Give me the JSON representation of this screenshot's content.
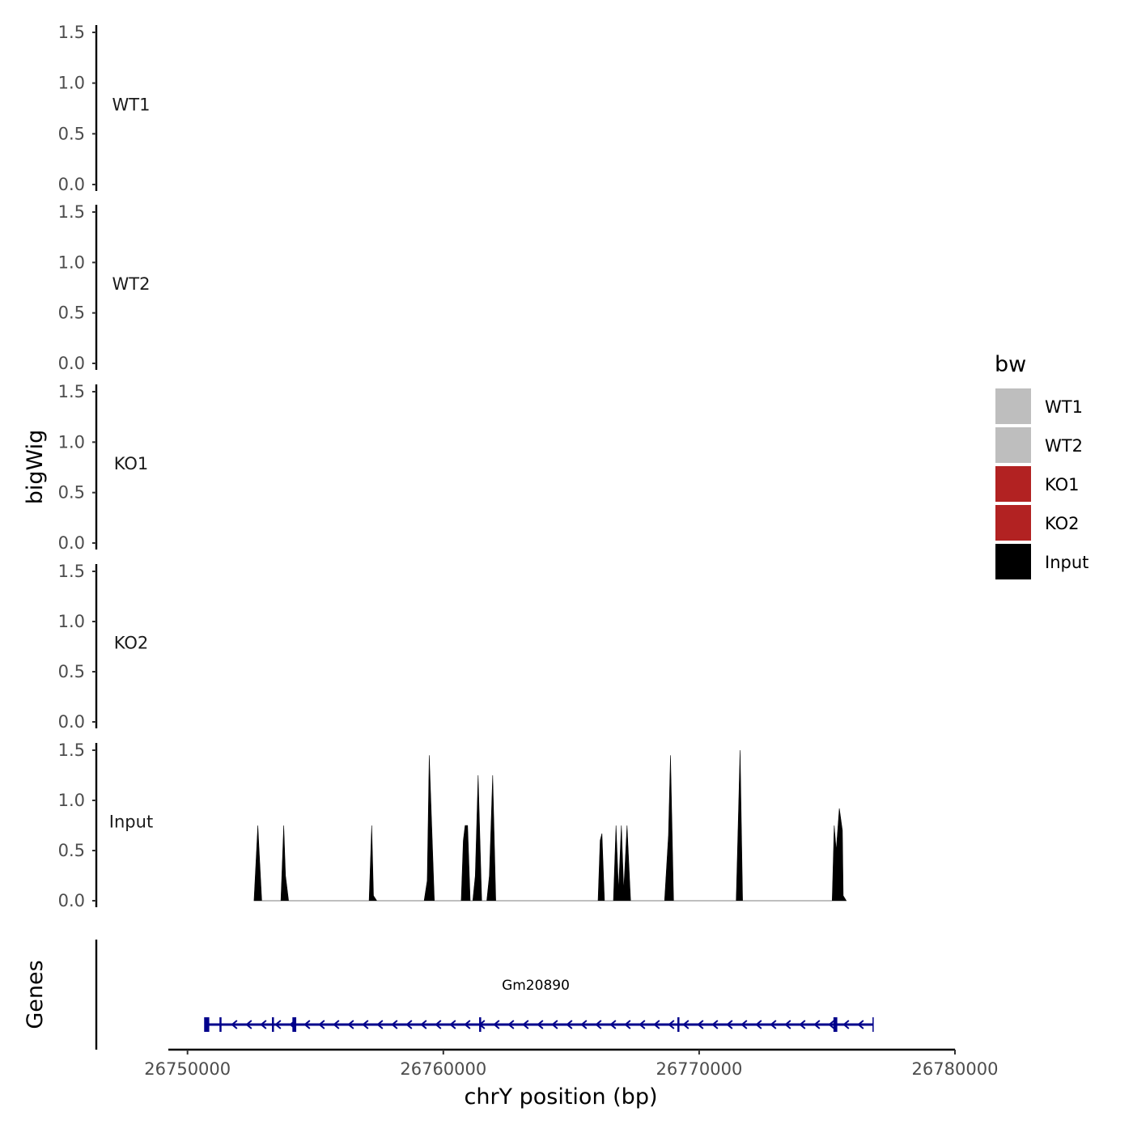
{
  "chart_data": {
    "type": "area",
    "ylabel": "bigWig",
    "xlabel": "chrY position (bp)",
    "ylim": [
      0,
      1.5
    ],
    "yticks": [
      "0.0",
      "0.5",
      "1.0",
      "1.5"
    ],
    "xlim": [
      26749250,
      26780000
    ],
    "xticks": [
      26750000,
      26760000,
      26770000,
      26780000
    ],
    "xtick_labels": [
      "26750000",
      "26760000",
      "26770000",
      "26780000"
    ],
    "tracks": [
      {
        "name": "WT1",
        "color": "#bebebe",
        "points": []
      },
      {
        "name": "WT2",
        "color": "#bebebe",
        "points": []
      },
      {
        "name": "KO1",
        "color": "#b22222",
        "points": []
      },
      {
        "name": "KO2",
        "color": "#b22222",
        "points": []
      },
      {
        "name": "Input",
        "color": "#000000",
        "points": [
          [
            26752600,
            0
          ],
          [
            26752750,
            0.75
          ],
          [
            26752900,
            0
          ],
          [
            26753650,
            0
          ],
          [
            26753760,
            0.75
          ],
          [
            26753830,
            0.25
          ],
          [
            26753950,
            0
          ],
          [
            26757100,
            0
          ],
          [
            26757200,
            0.75
          ],
          [
            26757270,
            0.05
          ],
          [
            26757400,
            0
          ],
          [
            26759250,
            0
          ],
          [
            26759370,
            0.2
          ],
          [
            26759450,
            1.45
          ],
          [
            26759650,
            0
          ],
          [
            26760700,
            0
          ],
          [
            26760780,
            0.6
          ],
          [
            26760850,
            0.75
          ],
          [
            26760950,
            0.75
          ],
          [
            26761050,
            0
          ],
          [
            26761150,
            0
          ],
          [
            26761250,
            0.25
          ],
          [
            26761360,
            1.25
          ],
          [
            26761500,
            0
          ],
          [
            26761700,
            0
          ],
          [
            26761800,
            0.25
          ],
          [
            26761930,
            1.25
          ],
          [
            26762050,
            0
          ],
          [
            26766050,
            0
          ],
          [
            26766130,
            0.6
          ],
          [
            26766200,
            0.67
          ],
          [
            26766300,
            0
          ],
          [
            26766650,
            0
          ],
          [
            26766750,
            0.75
          ],
          [
            26766850,
            0.1
          ],
          [
            26766960,
            0.75
          ],
          [
            26767050,
            0.1
          ],
          [
            26767180,
            0.75
          ],
          [
            26767320,
            0
          ],
          [
            26768650,
            0
          ],
          [
            26768800,
            0.65
          ],
          [
            26768880,
            1.45
          ],
          [
            26769000,
            0
          ],
          [
            26771450,
            0
          ],
          [
            26771600,
            1.5
          ],
          [
            26771700,
            0
          ],
          [
            26775200,
            0
          ],
          [
            26775280,
            0.75
          ],
          [
            26775360,
            0.5
          ],
          [
            26775480,
            0.92
          ],
          [
            26775600,
            0.7
          ],
          [
            26775630,
            0.05
          ],
          [
            26775750,
            0
          ]
        ]
      }
    ],
    "genes_label": "Genes",
    "gene": {
      "name": "Gm20890",
      "color": "#00008b",
      "start": 26750700,
      "end": 26776800,
      "strand": "-",
      "exons": [
        [
          26750650,
          26750850
        ],
        [
          26751250,
          26751300
        ],
        [
          26753300,
          26753330
        ],
        [
          26754100,
          26754250
        ],
        [
          26761400,
          26761450
        ],
        [
          26769150,
          26769200
        ],
        [
          26775250,
          26775400
        ]
      ]
    },
    "legend": {
      "title": "bw",
      "position": "right",
      "entries": [
        {
          "label": "WT1",
          "color": "#bebebe"
        },
        {
          "label": "WT2",
          "color": "#bebebe"
        },
        {
          "label": "KO1",
          "color": "#b22222"
        },
        {
          "label": "KO2",
          "color": "#b22222"
        },
        {
          "label": "Input",
          "color": "#000000"
        }
      ]
    }
  }
}
